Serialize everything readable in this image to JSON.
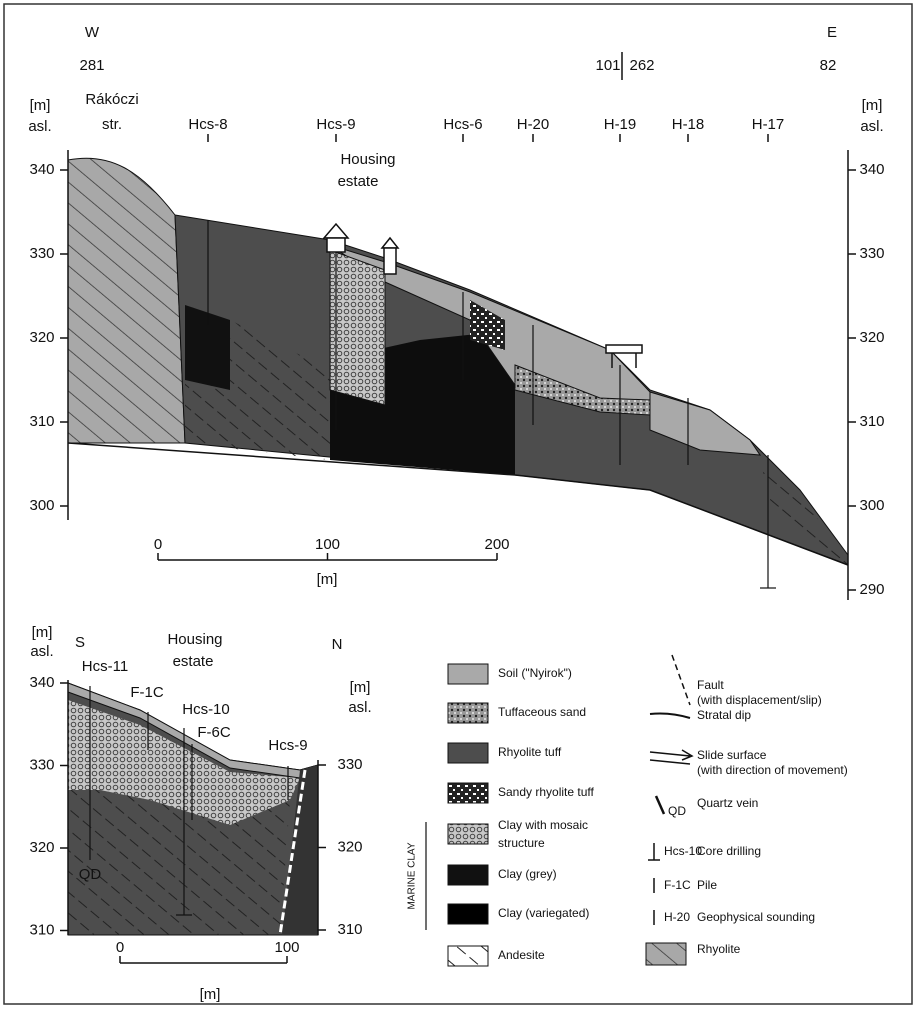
{
  "top_section": {
    "west": "W",
    "east": "E",
    "profile_marks": [
      "281",
      "101",
      "262",
      "82"
    ],
    "left_axis_title": [
      "[m]",
      "asl."
    ],
    "right_axis_title": [
      "[m]",
      "asl."
    ],
    "street": [
      "Rákóczi",
      "str."
    ],
    "locations": [
      "Hcs-8",
      "Hcs-9",
      "Hcs-6",
      "H-20",
      "H-19",
      "H-18",
      "H-17"
    ],
    "annotation": [
      "Housing",
      "estate"
    ],
    "left_ticks": [
      340,
      330,
      320,
      310,
      300
    ],
    "right_ticks": [
      340,
      330,
      320,
      310,
      300,
      290
    ],
    "scale_ticks": [
      0,
      100,
      200
    ],
    "scale_unit": "[m]"
  },
  "bottom_section": {
    "left_axis_title": [
      "[m]",
      "asl."
    ],
    "right_axis_title": [
      "[m]",
      "asl."
    ],
    "south": "S",
    "north": "N",
    "annotation": [
      "Housing",
      "estate"
    ],
    "locations": [
      "Hcs-11",
      "F-1C",
      "Hcs-10",
      "F-6C",
      "Hcs-9",
      "QD"
    ],
    "left_ticks": [
      340,
      330,
      320,
      310
    ],
    "right_ticks": [
      330,
      320,
      310
    ],
    "scale_ticks": [
      0,
      100
    ],
    "scale_unit": "[m]"
  },
  "legend": {
    "items": [
      [
        "Soil (\"Nyirok\")"
      ],
      [
        "Tuffaceous sand"
      ],
      [
        "Rhyolite tuff"
      ],
      [
        "Sandy rhyolite tuff"
      ],
      [
        "Clay with mosaic",
        "structure"
      ],
      [
        "Clay (grey)"
      ],
      [
        "Clay (variegated)"
      ],
      [
        "Andesite"
      ]
    ],
    "group_label": "MARINE CLAY",
    "symbols": [
      [
        "Fault",
        "(with displacement/slip)"
      ],
      [
        "Stratal dip"
      ],
      [
        "Slide surface",
        "(with direction of movement)"
      ],
      [
        "Quartz vein"
      ],
      [
        "Core drilling"
      ],
      [
        "Pile"
      ],
      [
        "Geophysical sounding"
      ],
      [
        "Rhyolite"
      ]
    ],
    "symbol_codes": [
      "QD",
      "Hcs-10",
      "F-1C",
      "H-20"
    ]
  }
}
